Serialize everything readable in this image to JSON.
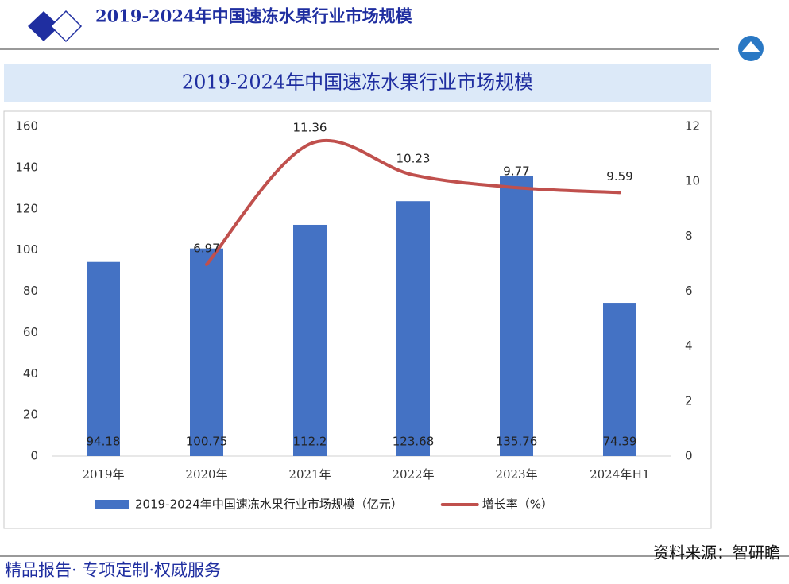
{
  "header": {
    "title": "2019-2024年中国速冻水果行业市场规模"
  },
  "chart_data": {
    "type": "bar_line",
    "title": "2019-2024年中国速冻水果行业市场规模",
    "categories": [
      "2019年",
      "2020年",
      "2021年",
      "2022年",
      "2023年",
      "2024年H1"
    ],
    "series": [
      {
        "name": "2019-2024年中国速冻水果行业市场规模（亿元）",
        "type": "bar",
        "color": "#4472c4",
        "values": [
          94.18,
          100.75,
          112.2,
          123.68,
          135.76,
          74.39
        ]
      },
      {
        "name": "增长率（%）",
        "type": "line",
        "axis": "y2",
        "color": "#c0504d",
        "values": [
          null,
          6.97,
          11.36,
          10.23,
          9.77,
          9.59
        ]
      }
    ],
    "ylim": [
      0,
      160
    ],
    "yticks": [
      0,
      20,
      40,
      60,
      80,
      100,
      120,
      140,
      160
    ],
    "y2lim": [
      0,
      12
    ],
    "y2ticks": [
      0,
      2,
      4,
      6,
      8,
      10,
      12
    ]
  },
  "footer": {
    "slogan": "精品报告· 专项定制·权威服务",
    "source": "资料来源：智研瞻"
  }
}
